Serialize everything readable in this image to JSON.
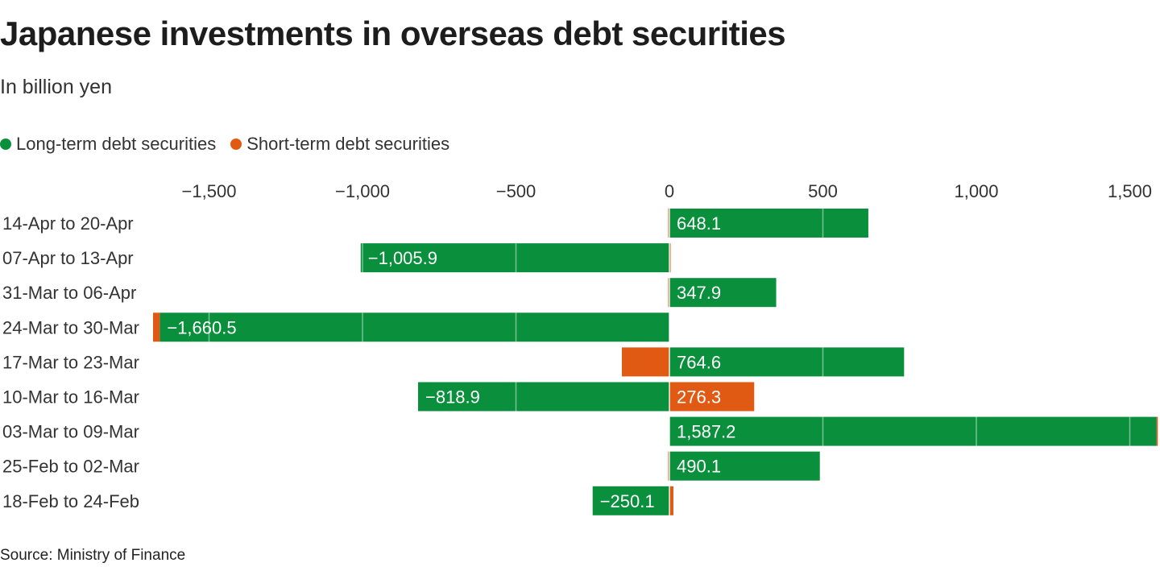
{
  "title": "Japanese investments in overseas debt securities",
  "subtitle": "In billion yen",
  "source": "Source: Ministry of Finance",
  "colors": {
    "long_term": "#0a8f3c",
    "short_term": "#e05a14",
    "gridline": "#ffffff",
    "text": "#333333"
  },
  "legend": [
    {
      "label": "Long-term debt securities",
      "color": "#0a8f3c"
    },
    {
      "label": "Short-term debt securities",
      "color": "#e05a14"
    }
  ],
  "chart_data": {
    "type": "bar",
    "orientation": "horizontal",
    "stacked": true,
    "title": "Japanese investments in overseas debt securities",
    "subtitle": "In billion yen",
    "xlim": [
      -1680,
      1600
    ],
    "x_ticks": [
      -1500,
      -1000,
      -500,
      0,
      500,
      1000,
      1500
    ],
    "x_tick_labels": [
      "−1,500",
      "−1,000",
      "−500",
      "0",
      "500",
      "1,000",
      "1,500"
    ],
    "categories": [
      "14-Apr to 20-Apr",
      "07-Apr to 13-Apr",
      "31-Mar to 06-Apr",
      "24-Mar to 30-Mar",
      "17-Mar to 23-Mar",
      "10-Mar to 16-Mar",
      "03-Mar to 09-Mar",
      "25-Feb to 02-Mar",
      "18-Feb to 24-Feb"
    ],
    "series": [
      {
        "name": "Long-term debt securities",
        "color": "#0a8f3c",
        "values": [
          648.1,
          -1005.9,
          347.9,
          -1660.5,
          764.6,
          -818.9,
          1587.2,
          490.1,
          -250.1
        ],
        "labels": [
          "648.1",
          "−1,005.9",
          "347.9",
          "−1,660.5",
          "764.6",
          "−818.9",
          "1,587.2",
          "490.1",
          "−250.1"
        ]
      },
      {
        "name": "Short-term debt securities",
        "color": "#e05a14",
        "values": [
          -4,
          4,
          -4,
          -22,
          -155,
          276.3,
          4,
          -4,
          13
        ],
        "labels": [
          "",
          "",
          "",
          "",
          "",
          "276.3",
          "",
          "",
          ""
        ]
      }
    ],
    "legend_position": "top-left",
    "grid": "white lines over bars"
  }
}
